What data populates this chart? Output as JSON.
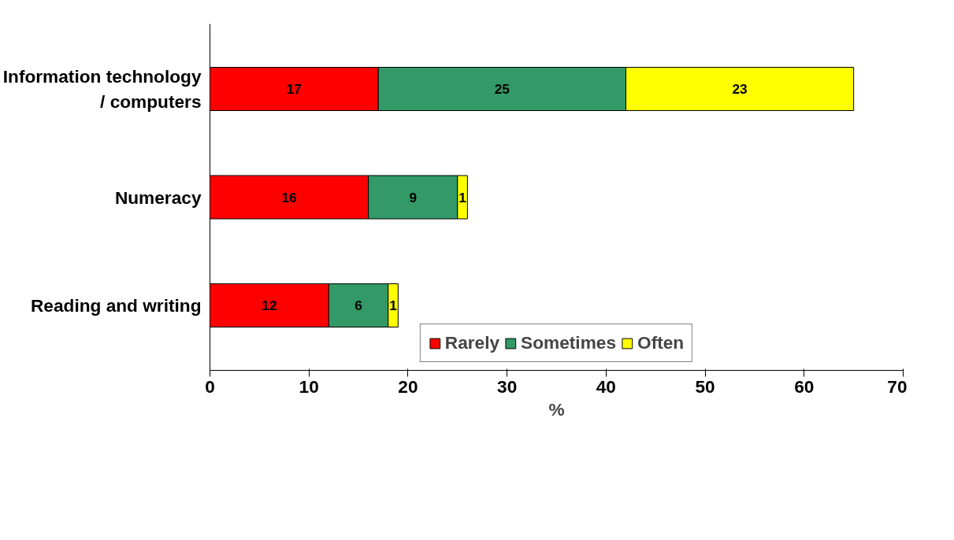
{
  "chart_data": {
    "type": "bar",
    "orientation": "horizontal",
    "stacked": true,
    "categories": [
      "Information technology / computers",
      "Numeracy",
      "Reading and writing"
    ],
    "series": [
      {
        "name": "Rarely",
        "color": "#ff0000",
        "values": [
          17,
          16,
          12
        ]
      },
      {
        "name": "Sometimes",
        "color": "#339966",
        "values": [
          25,
          9,
          6
        ]
      },
      {
        "name": "Often",
        "color": "#ffff00",
        "values": [
          23,
          1,
          1
        ]
      }
    ],
    "xlabel": "%",
    "xlim": [
      0,
      70
    ],
    "xticks": [
      0,
      10,
      20,
      30,
      40,
      50,
      60,
      70
    ],
    "data_labels": true,
    "legend": "bottom",
    "grid": false
  }
}
